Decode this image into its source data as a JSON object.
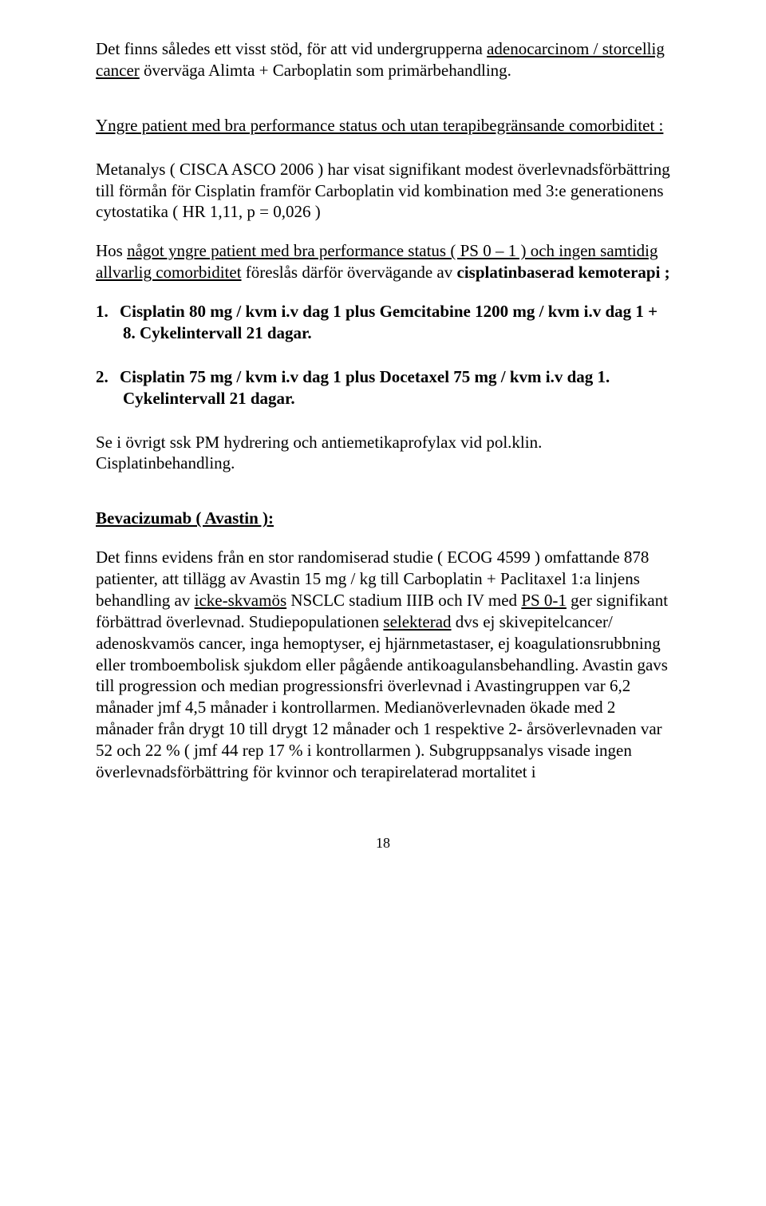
{
  "p1": {
    "t1": "Det finns således ett visst stöd, för att vid undergrupperna ",
    "u1": "adenocarcinom / storcellig cancer",
    "t2": " överväga Alimta + Carboplatin som primärbehandling."
  },
  "p2": {
    "u1": "Yngre patient med bra performance status och utan terapibegränsande comorbiditet :"
  },
  "p3": "Metanalys ( CISCA ASCO 2006 ) har visat signifikant modest överlevnadsförbättring till förmån för Cisplatin framför Carboplatin vid kombination med 3:e generationens cytostatika ( HR 1,11, p = 0,026 )",
  "p4": {
    "t1": "Hos ",
    "u1": "något yngre patient med bra performance status ( PS 0 – 1 ) och ingen samtidig allvarlig comorbiditet",
    "t2": " föreslås därför övervägande av ",
    "b1": "cisplatinbaserad kemoterapi ;"
  },
  "li1": "Cisplatin 80 mg / kvm i.v dag 1 plus  Gemcitabine 1200 mg / kvm i.v dag 1 + 8. Cykelintervall 21 dagar.",
  "li2": "Cisplatin 75 mg / kvm i.v dag 1 plus Docetaxel 75 mg / kvm i.v dag 1. Cykelintervall 21 dagar.",
  "n1": "1.",
  "n2": "2.",
  "p5": "Se i övrigt ssk PM hydrering och antiemetikaprofylax vid pol.klin. Cisplatinbehandling.",
  "p6": {
    "u1": "Bevacizumab ( Avastin ):"
  },
  "p7": {
    "t1": "Det finns evidens från en stor randomiserad studie ( ECOG 4599 ) omfattande 878 patienter, att tillägg av Avastin 15 mg / kg  till Carboplatin + Paclitaxel 1:a linjens behandling av ",
    "u1": "icke-skvamös",
    "t2": " NSCLC stadium IIIB och IV med ",
    "u2": "PS 0-1",
    "t3": " ger signifikant förbättrad överlevnad. Studiepopulationen ",
    "u3": "selekterad",
    "t4": " dvs ej skivepitelcancer/ adenoskvamös cancer, inga hemoptyser, ej hjärnmetastaser, ej koagulationsrubbning eller tromboembolisk sjukdom eller pågående antikoagulansbehandling. Avastin gavs till progression och median progressionsfri överlevnad i Avastingruppen var 6,2 månader jmf 4,5 månader i kontrollarmen. Medianöverlevnaden ökade med 2 månader från drygt 10 till drygt 12 månader och 1 respektive 2- årsöverlevnaden  var 52 och 22 % ( jmf 44 rep 17 % i kontrollarmen ). Subgruppsanalys visade ingen överlevnadsförbättring för kvinnor och terapirelaterad mortalitet i"
  },
  "pageNum": "18"
}
